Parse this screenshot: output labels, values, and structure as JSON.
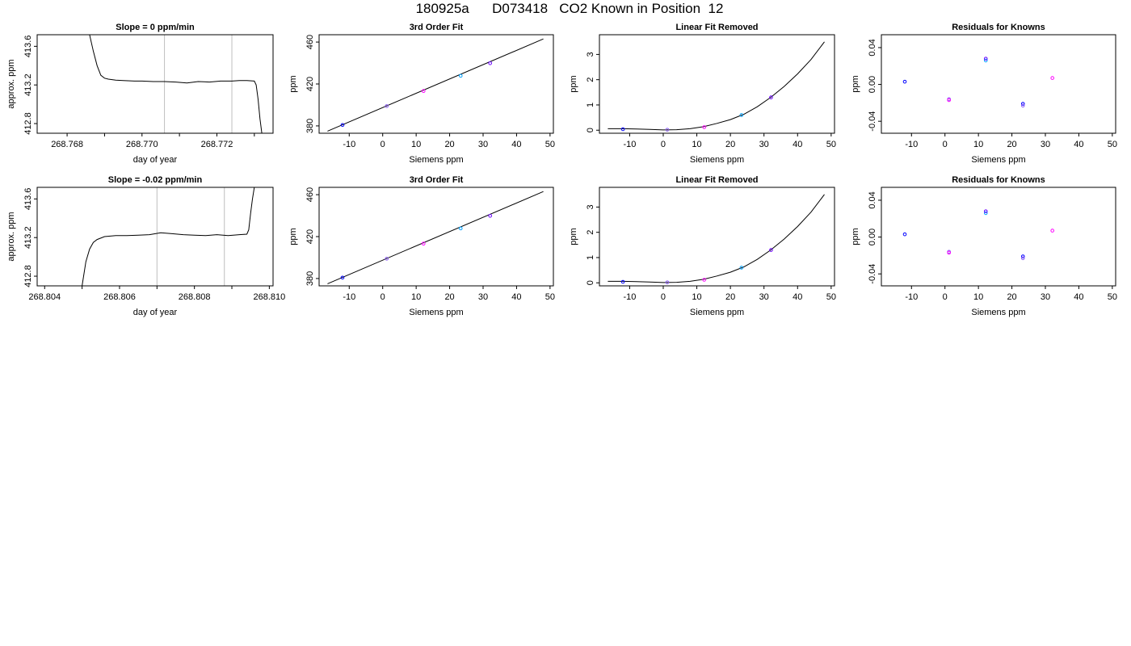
{
  "header": {
    "title": "180925a      D073418   CO2 Known in Position  12"
  },
  "colors": {
    "line": "#000000",
    "guide": "#bebebe",
    "points": [
      "#0000ff",
      "#8b5cf6",
      "#ff00ff",
      "#00a0ff",
      "#6a00ff"
    ]
  },
  "chart_data": [
    {
      "id": "r1c1",
      "type": "line",
      "title": "Slope =  0  ppm/min",
      "xlabel": "day of year",
      "ylabel": "approx. ppm",
      "xlim": [
        268.7672,
        268.7735
      ],
      "ylim": [
        412.7,
        413.72
      ],
      "xticks": [
        268.768,
        268.77,
        268.772
      ],
      "xticklabels": [
        "268.768",
        "268.770",
        "268.772"
      ],
      "xticks_minor": [
        268.769,
        268.771,
        268.773
      ],
      "yticks": [
        412.8,
        413.2,
        413.6
      ],
      "yticklabels": [
        "412.8",
        "413.2",
        "413.6"
      ],
      "vlines": [
        268.7706,
        268.7724
      ],
      "x": [
        268.7686,
        268.7687,
        268.7688,
        268.7689,
        268.769,
        268.7691,
        268.7693,
        268.7695,
        268.7698,
        268.77,
        268.7703,
        268.7706,
        268.7709,
        268.7712,
        268.7715,
        268.7718,
        268.7721,
        268.7724,
        268.7726,
        268.7728,
        268.773,
        268.77305,
        268.7731,
        268.77315,
        268.7732
      ],
      "y": [
        413.72,
        413.55,
        413.4,
        413.3,
        413.27,
        413.26,
        413.25,
        413.245,
        413.24,
        413.24,
        413.235,
        413.235,
        413.23,
        413.22,
        413.235,
        413.23,
        413.24,
        413.24,
        413.245,
        413.245,
        413.24,
        413.2,
        413.05,
        412.85,
        412.7
      ]
    },
    {
      "id": "r1c2",
      "type": "scatter",
      "title": "3rd Order Fit",
      "xlabel": "Siemens ppm",
      "ylabel": "ppm",
      "xlim": [
        -19,
        51
      ],
      "ylim": [
        373,
        467
      ],
      "xticks": [
        -10,
        0,
        10,
        20,
        30,
        40,
        50
      ],
      "xticklabels": [
        "-10",
        "0",
        "10",
        "20",
        "30",
        "40",
        "50"
      ],
      "yticks": [
        380,
        420,
        460
      ],
      "yticklabels": [
        "380",
        "420",
        "460"
      ],
      "curve": {
        "x": [
          -16.5,
          48
        ],
        "y": [
          375,
          463
        ]
      },
      "points": {
        "x": [
          -12,
          1.2,
          12.2,
          23.3,
          32.1
        ],
        "y": [
          380.9,
          398.9,
          413.3,
          427.8,
          439.8
        ]
      }
    },
    {
      "id": "r1c3",
      "type": "scatter",
      "title": "Linear Fit Removed",
      "xlabel": "Siemens ppm",
      "ylabel": "ppm",
      "xlim": [
        -19,
        51
      ],
      "ylim": [
        -0.12,
        3.78
      ],
      "xticks": [
        -10,
        0,
        10,
        20,
        30,
        40,
        50
      ],
      "xticklabels": [
        "-10",
        "0",
        "10",
        "20",
        "30",
        "40",
        "50"
      ],
      "yticks": [
        0,
        1,
        2,
        3
      ],
      "yticklabels": [
        "0",
        "1",
        "2",
        "3"
      ],
      "curve": {
        "x": [
          -16.5,
          -12,
          -8,
          -4,
          0,
          4,
          8,
          12,
          16,
          20,
          24,
          28,
          32,
          36,
          40,
          44,
          48
        ],
        "y": [
          0.06,
          0.06,
          0.05,
          0.03,
          0.01,
          0.02,
          0.06,
          0.14,
          0.27,
          0.42,
          0.63,
          0.93,
          1.3,
          1.73,
          2.23,
          2.8,
          3.5
        ]
      },
      "points": {
        "x": [
          -12,
          1.2,
          12.2,
          23.3,
          32.1
        ],
        "y": [
          0.04,
          0.02,
          0.12,
          0.6,
          1.3
        ]
      }
    },
    {
      "id": "r1c4",
      "type": "scatter",
      "title": "Residuals for Knowns",
      "xlabel": "Siemens ppm",
      "ylabel": "ppm",
      "xlim": [
        -19,
        51
      ],
      "ylim": [
        -0.053,
        0.054
      ],
      "xticks": [
        -10,
        0,
        10,
        20,
        30,
        40,
        50
      ],
      "xticklabels": [
        "-10",
        "0",
        "10",
        "20",
        "30",
        "40",
        "50"
      ],
      "yticks": [
        -0.04,
        0.0,
        0.04
      ],
      "yticklabels": [
        "-0.04",
        "0.00",
        "0.04"
      ],
      "points": {
        "x": [
          -12,
          1.2,
          1.2,
          12.2,
          12.2,
          23.3,
          23.3,
          32.1
        ],
        "y": [
          0.003,
          -0.016,
          -0.017,
          0.026,
          0.028,
          -0.021,
          -0.023,
          0.007
        ]
      }
    },
    {
      "id": "r2c1",
      "type": "line",
      "title": "Slope =  -0.02  ppm/min",
      "xlabel": "day of year",
      "ylabel": "approx. ppm",
      "xlim": [
        268.8038,
        268.8101
      ],
      "ylim": [
        412.7,
        413.72
      ],
      "xticks": [
        268.804,
        268.806,
        268.808,
        268.81
      ],
      "xticklabels": [
        "268.804",
        "268.806",
        "268.808",
        "268.810"
      ],
      "xticks_minor": [
        268.805,
        268.807,
        268.809
      ],
      "yticks": [
        412.8,
        413.2,
        413.6
      ],
      "yticklabels": [
        "412.8",
        "413.2",
        "413.6"
      ],
      "vlines": [
        268.807,
        268.8088
      ],
      "x": [
        268.805,
        268.8051,
        268.8052,
        268.8053,
        268.8054,
        268.8056,
        268.8059,
        268.8062,
        268.8065,
        268.8068,
        268.8071,
        268.8074,
        268.8077,
        268.808,
        268.8083,
        268.8086,
        268.8089,
        268.8092,
        268.8094,
        268.80945,
        268.8095,
        268.80955,
        268.8096
      ],
      "y": [
        412.7,
        412.95,
        413.08,
        413.15,
        413.18,
        413.21,
        413.22,
        413.22,
        413.225,
        413.23,
        413.25,
        413.24,
        413.23,
        413.225,
        413.22,
        413.23,
        413.22,
        413.23,
        413.235,
        413.28,
        413.45,
        413.6,
        413.72
      ]
    },
    {
      "id": "r2c2",
      "type": "scatter",
      "title": "3rd Order Fit",
      "xlabel": "Siemens ppm",
      "ylabel": "ppm",
      "xlim": [
        -19,
        51
      ],
      "ylim": [
        373,
        467
      ],
      "xticks": [
        -10,
        0,
        10,
        20,
        30,
        40,
        50
      ],
      "xticklabels": [
        "-10",
        "0",
        "10",
        "20",
        "30",
        "40",
        "50"
      ],
      "yticks": [
        380,
        420,
        460
      ],
      "yticklabels": [
        "380",
        "420",
        "460"
      ],
      "curve": {
        "x": [
          -16.5,
          48
        ],
        "y": [
          375,
          463
        ]
      },
      "points": {
        "x": [
          -12,
          1.2,
          12.2,
          23.3,
          32.1
        ],
        "y": [
          380.9,
          398.9,
          413.3,
          427.8,
          439.8
        ]
      }
    },
    {
      "id": "r2c3",
      "type": "scatter",
      "title": "Linear Fit Removed",
      "xlabel": "Siemens ppm",
      "ylabel": "ppm",
      "xlim": [
        -19,
        51
      ],
      "ylim": [
        -0.12,
        3.78
      ],
      "xticks": [
        -10,
        0,
        10,
        20,
        30,
        40,
        50
      ],
      "xticklabels": [
        "-10",
        "0",
        "10",
        "20",
        "30",
        "40",
        "50"
      ],
      "yticks": [
        0,
        1,
        2,
        3
      ],
      "yticklabels": [
        "0",
        "1",
        "2",
        "3"
      ],
      "curve": {
        "x": [
          -16.5,
          -12,
          -8,
          -4,
          0,
          4,
          8,
          12,
          16,
          20,
          24,
          28,
          32,
          36,
          40,
          44,
          48
        ],
        "y": [
          0.06,
          0.06,
          0.05,
          0.03,
          0.01,
          0.02,
          0.06,
          0.14,
          0.27,
          0.42,
          0.63,
          0.93,
          1.3,
          1.73,
          2.23,
          2.8,
          3.5
        ]
      },
      "points": {
        "x": [
          -12,
          1.2,
          12.2,
          23.3,
          32.1
        ],
        "y": [
          0.04,
          0.02,
          0.12,
          0.6,
          1.3
        ]
      }
    },
    {
      "id": "r2c4",
      "type": "scatter",
      "title": "Residuals for Knowns",
      "xlabel": "Siemens ppm",
      "ylabel": "ppm",
      "xlim": [
        -19,
        51
      ],
      "ylim": [
        -0.053,
        0.054
      ],
      "xticks": [
        -10,
        0,
        10,
        20,
        30,
        40,
        50
      ],
      "xticklabels": [
        "-10",
        "0",
        "10",
        "20",
        "30",
        "40",
        "50"
      ],
      "yticks": [
        -0.04,
        0.0,
        0.04
      ],
      "yticklabels": [
        "-0.04",
        "0.00",
        "0.04"
      ],
      "points": {
        "x": [
          -12,
          1.2,
          1.2,
          12.2,
          12.2,
          23.3,
          23.3,
          32.1
        ],
        "y": [
          0.003,
          -0.016,
          -0.017,
          0.026,
          0.028,
          -0.021,
          -0.023,
          0.007
        ]
      }
    }
  ]
}
